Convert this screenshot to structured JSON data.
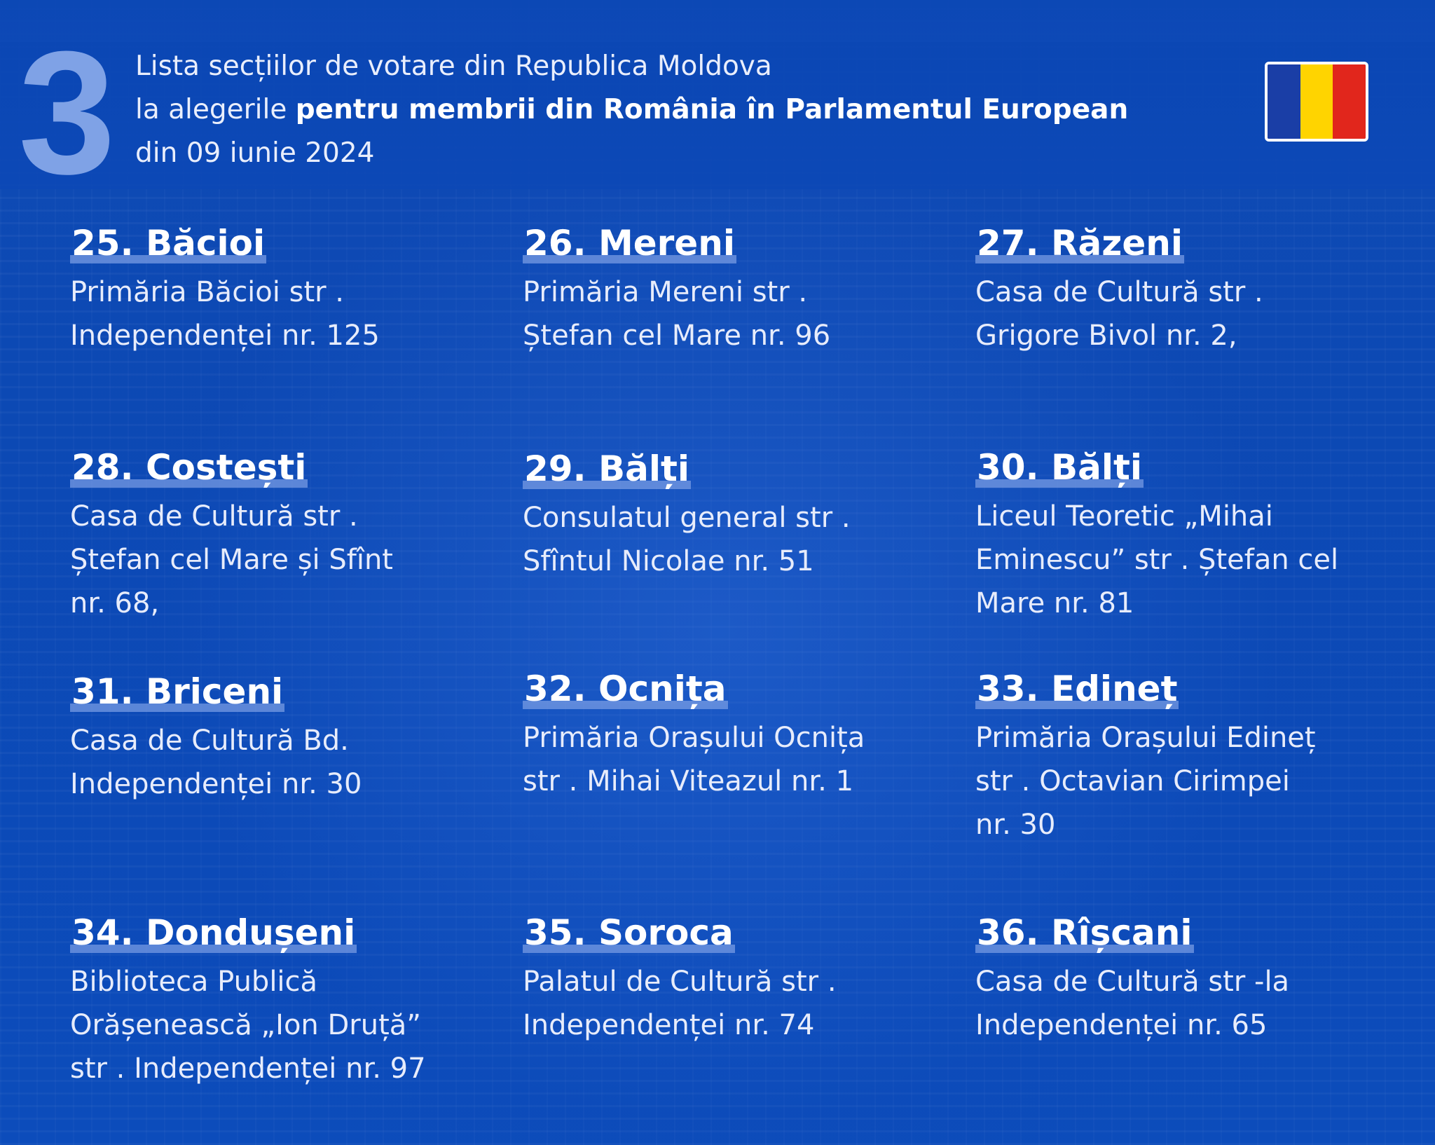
{
  "header": {
    "number": "3",
    "line1": "Lista secțiilor de votare din Republica Moldova",
    "line2_prefix": "la alegerile ",
    "line2_bold": "pentru membrii din România în Parlamentul European",
    "line3": "din 09 iunie 2024"
  },
  "flag": {
    "colors": [
      "#1a3ea6",
      "#ffd400",
      "#e1261c"
    ]
  },
  "sections": [
    {
      "title": "25. Băcioi",
      "address": "Primăria Băcioi str .\nIndependenței nr. 125"
    },
    {
      "title": "26. Mereni",
      "address": "Primăria Mereni str .\nȘtefan cel Mare nr. 96"
    },
    {
      "title": "27. Răzeni",
      "address": "Casa de Cultură str .\nGrigore Bivol nr. 2,"
    },
    {
      "title": "28. Costești",
      "address": "Casa de Cultură str .\nȘtefan cel Mare și Sfînt\nnr. 68,"
    },
    {
      "title": "29. Bălți",
      "address": "Consulatul general str .\nSfîntul Nicolae nr. 51"
    },
    {
      "title": "30. Bălți",
      "address": "Liceul Teoretic „Mihai\nEminescu” str . Ștefan cel\nMare nr. 81"
    },
    {
      "title": "31. Briceni",
      "address": "Casa de Cultură Bd.\nIndependenței nr. 30"
    },
    {
      "title": "32. Ocnița",
      "address": "Primăria Orașului Ocnița\nstr . Mihai Viteazul nr. 1"
    },
    {
      "title": "33. Edineț",
      "address": "Primăria Orașului Edineț\nstr . Octavian Cirimpei\nnr. 30"
    },
    {
      "title": "34. Dondușeni",
      "address": "Biblioteca Publică\nOrășenească „Ion Druță”\nstr . Independenței nr. 97"
    },
    {
      "title": "35. Soroca",
      "address": "Palatul de Cultură str .\nIndependenței nr. 74"
    },
    {
      "title": "36. Rîșcani",
      "address": "Casa de Cultură str -la\nIndependenței nr. 65"
    }
  ]
}
